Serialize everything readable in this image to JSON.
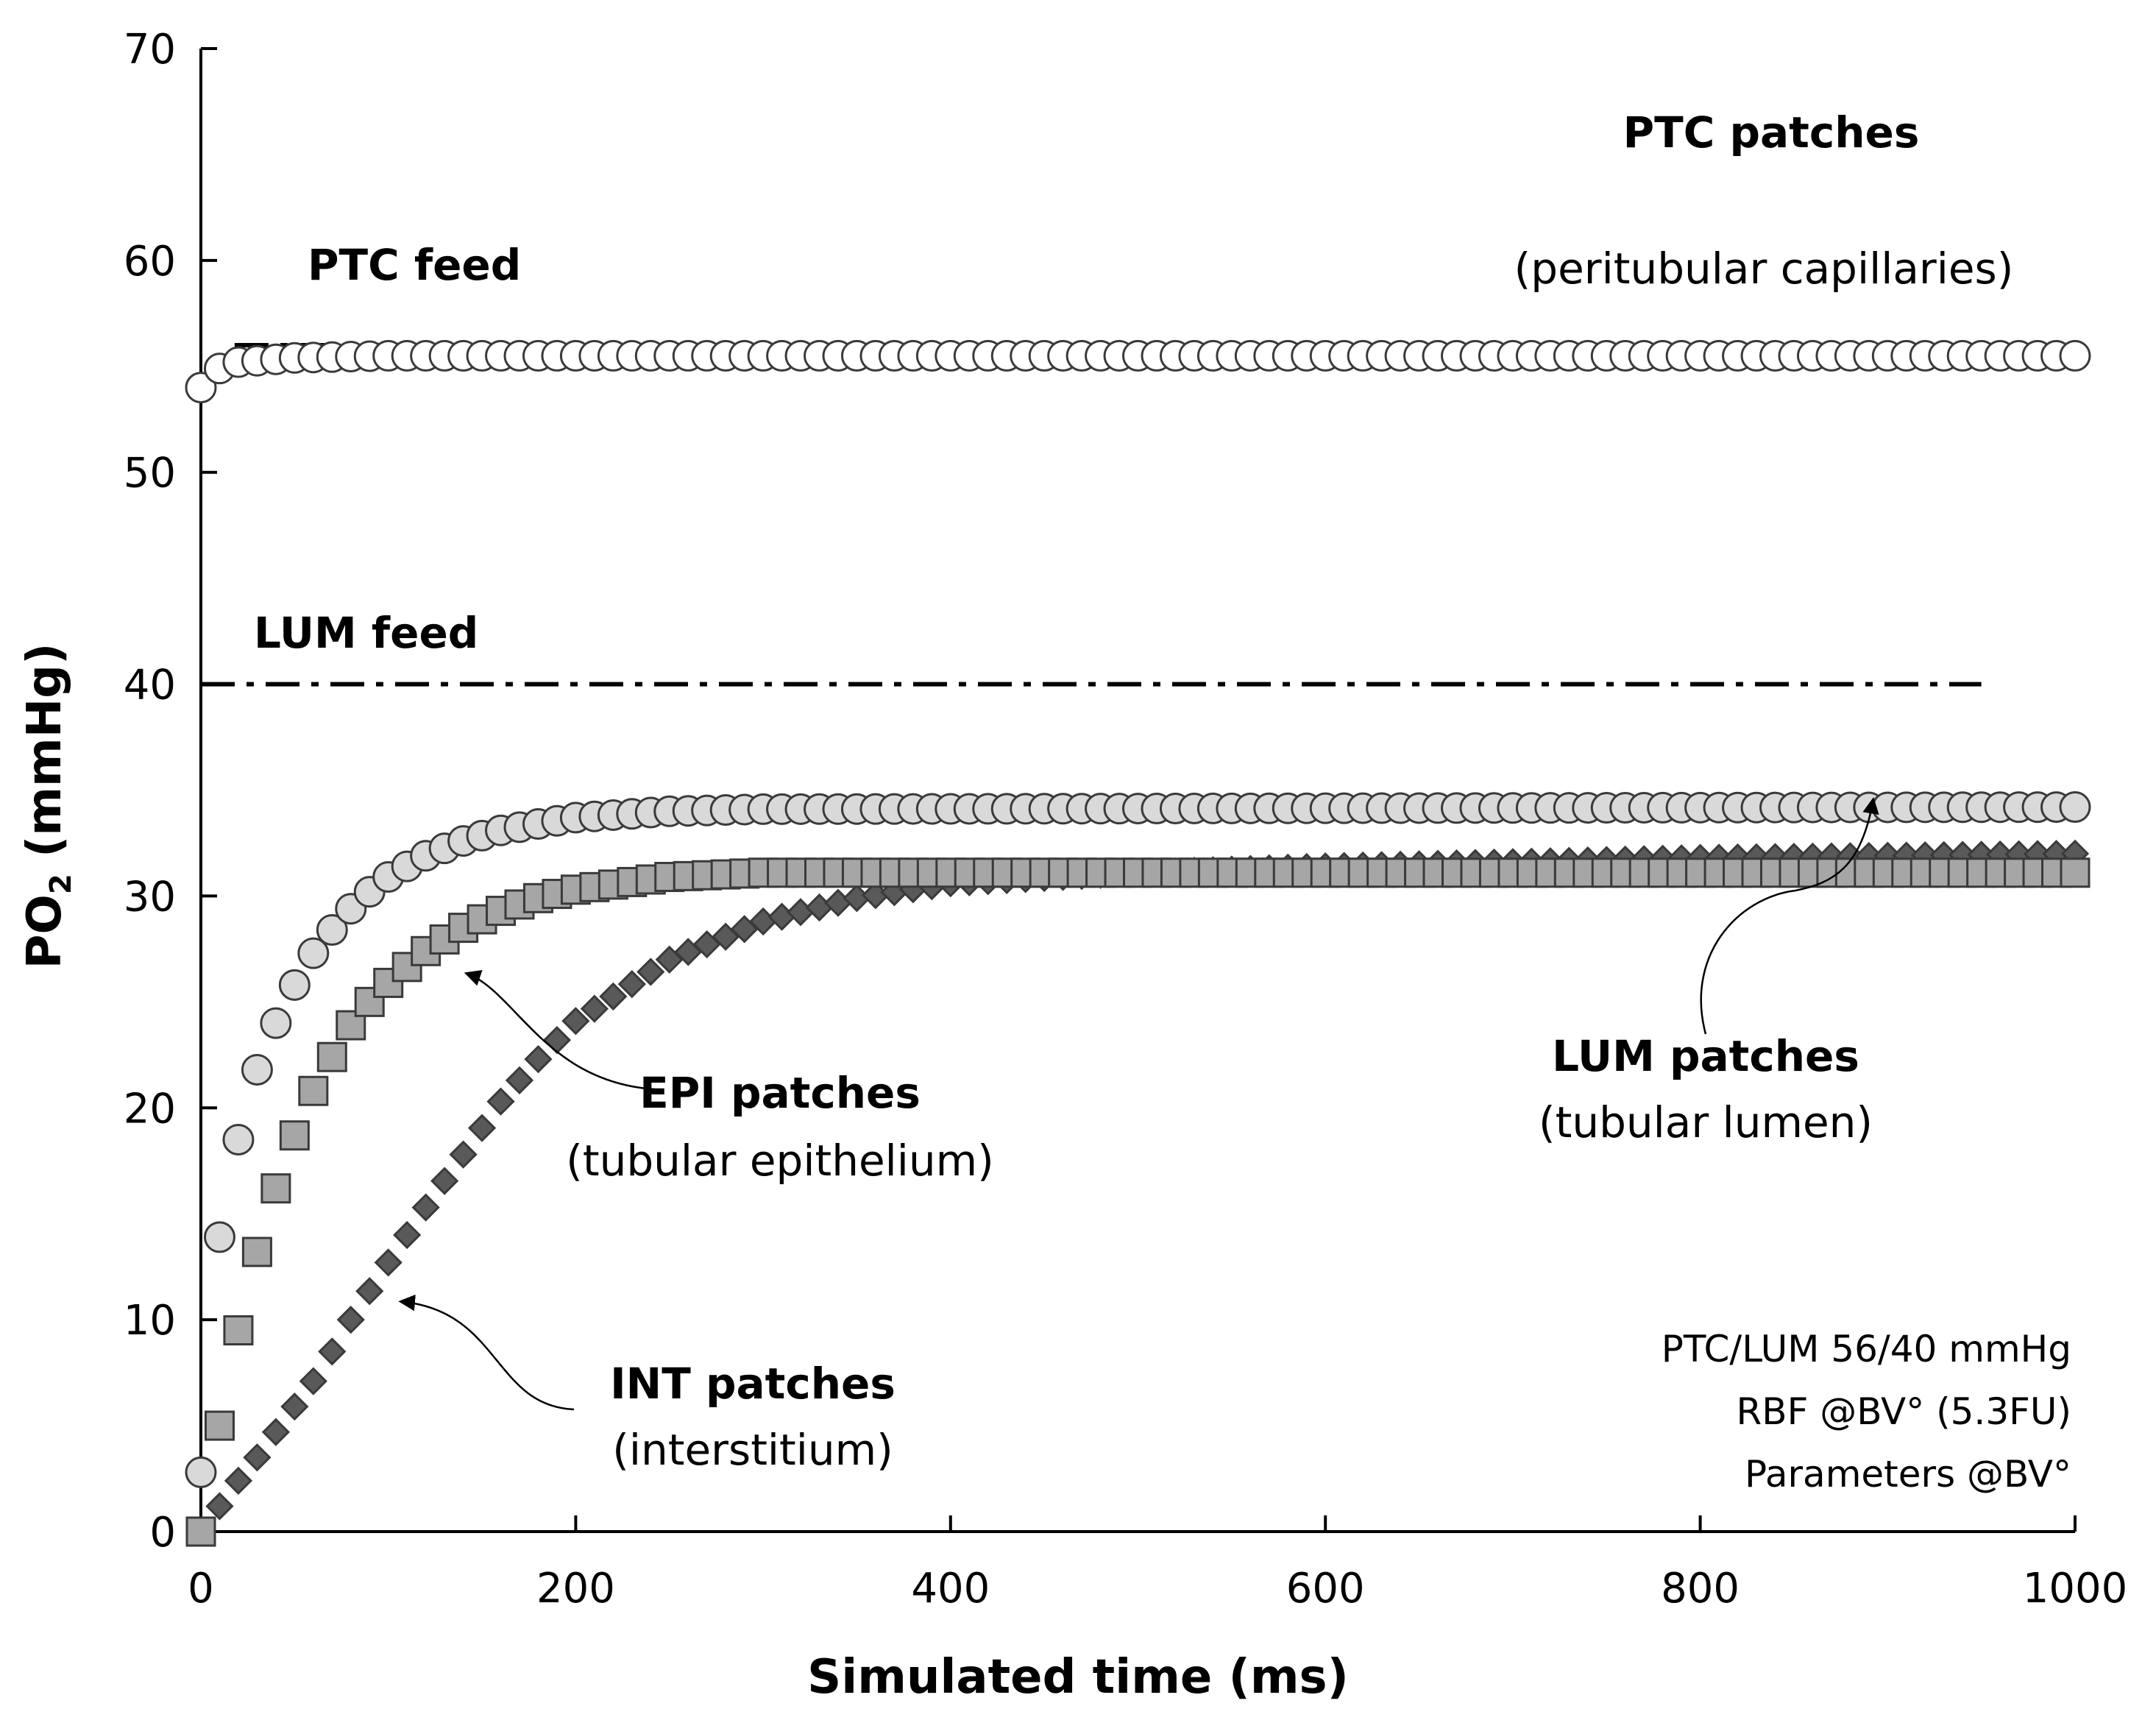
{
  "chart_data": {
    "type": "scatter",
    "xlabel": "Simulated time (ms)",
    "ylabel": {
      "main": "PO",
      "sub": "2",
      "unit": " (mmHg)"
    },
    "xlim": [
      0,
      1000
    ],
    "ylim": [
      0,
      70
    ],
    "xticks": [
      0,
      200,
      400,
      600,
      800,
      1000
    ],
    "yticks": [
      0,
      10,
      20,
      30,
      40,
      50,
      60,
      70
    ],
    "grid": false,
    "legend": "none",
    "marker_spacing_ms": 10,
    "reference_lines": [
      {
        "id": "ptc-feed",
        "label": "PTC feed",
        "y": 56,
        "x_start": 18,
        "x_end": 1000,
        "style": "dash-dot"
      },
      {
        "id": "lum-feed",
        "label": "LUM feed",
        "y": 40,
        "x_start": 0,
        "x_end": 950,
        "style": "dash-dot"
      }
    ],
    "series": [
      {
        "id": "ptc",
        "marker": "circle",
        "fill": "#ffffff",
        "stroke": "#3a3a3a",
        "points": [
          [
            0,
            54.0
          ],
          [
            10,
            54.9
          ],
          [
            20,
            55.2
          ],
          [
            50,
            55.4
          ],
          [
            100,
            55.5
          ],
          [
            1000,
            55.5
          ]
        ]
      },
      {
        "id": "lum",
        "marker": "circle",
        "fill": "#d9d9d9",
        "stroke": "#3a3a3a",
        "points": [
          [
            0,
            2.8
          ],
          [
            10,
            13.9
          ],
          [
            20,
            18.5
          ],
          [
            30,
            21.8
          ],
          [
            40,
            24.0
          ],
          [
            50,
            25.8
          ],
          [
            60,
            27.3
          ],
          [
            70,
            28.4
          ],
          [
            80,
            29.4
          ],
          [
            90,
            30.2
          ],
          [
            100,
            30.9
          ],
          [
            120,
            31.9
          ],
          [
            140,
            32.6
          ],
          [
            160,
            33.1
          ],
          [
            180,
            33.4
          ],
          [
            200,
            33.7
          ],
          [
            250,
            34.0
          ],
          [
            300,
            34.1
          ],
          [
            1000,
            34.2
          ]
        ]
      },
      {
        "id": "epi",
        "marker": "square",
        "fill": "#a6a6a6",
        "stroke": "#3a3a3a",
        "points": [
          [
            0,
            0.0
          ],
          [
            10,
            5.0
          ],
          [
            20,
            9.5
          ],
          [
            30,
            13.2
          ],
          [
            40,
            16.2
          ],
          [
            50,
            18.7
          ],
          [
            60,
            20.8
          ],
          [
            70,
            22.4
          ],
          [
            80,
            23.9
          ],
          [
            90,
            25.0
          ],
          [
            100,
            25.9
          ],
          [
            120,
            27.4
          ],
          [
            140,
            28.5
          ],
          [
            160,
            29.3
          ],
          [
            180,
            29.9
          ],
          [
            200,
            30.3
          ],
          [
            250,
            30.9
          ],
          [
            300,
            31.1
          ],
          [
            1000,
            31.1
          ]
        ]
      },
      {
        "id": "int",
        "marker": "diamond",
        "fill": "#595959",
        "stroke": "#3a3a3a",
        "points": [
          [
            0,
            0.0
          ],
          [
            10,
            1.2
          ],
          [
            20,
            2.4
          ],
          [
            30,
            3.5
          ],
          [
            40,
            4.7
          ],
          [
            50,
            5.9
          ],
          [
            60,
            7.1
          ],
          [
            70,
            8.5
          ],
          [
            80,
            10.0
          ],
          [
            100,
            12.7
          ],
          [
            120,
            15.3
          ],
          [
            140,
            17.8
          ],
          [
            160,
            20.3
          ],
          [
            180,
            22.3
          ],
          [
            200,
            24.1
          ],
          [
            250,
            27.0
          ],
          [
            300,
            28.8
          ],
          [
            350,
            29.9
          ],
          [
            400,
            30.6
          ],
          [
            500,
            31.1
          ],
          [
            600,
            31.4
          ],
          [
            800,
            31.8
          ],
          [
            1000,
            32.0
          ]
        ]
      }
    ],
    "annotations": [
      {
        "id": "ptc-patches",
        "title": "PTC patches",
        "subtitle": "(peritubular capillaries)"
      },
      {
        "id": "epi-patches",
        "title": "EPI patches",
        "subtitle": "(tubular epithelium)",
        "arrow_to": [
          135,
          26.5
        ]
      },
      {
        "id": "int-patches",
        "title": "INT patches",
        "subtitle": "(interstitium)",
        "arrow_to": [
          100,
          11.0
        ]
      },
      {
        "id": "lum-patches",
        "title": "LUM patches",
        "subtitle": "(tubular lumen)",
        "arrow_to": [
          890,
          34.8
        ]
      }
    ],
    "info_box": [
      "PTC/LUM 56/40 mmHg",
      "RBF @BV° (5.3FU)",
      "Parameters @BV°"
    ]
  }
}
